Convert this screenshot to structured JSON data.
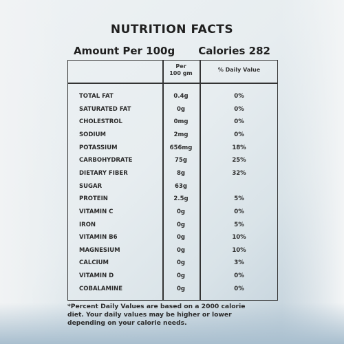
{
  "title": "NUTRITION FACTS",
  "amount_label": "Amount Per 100g",
  "calories_label": "Calories 282",
  "columns": {
    "per_line1": "Per",
    "per_line2": "100 gm",
    "daily_value": "% Daily Value"
  },
  "rows": [
    {
      "name": "TOTAL FAT",
      "amount": "0.4g",
      "dv": "0%"
    },
    {
      "name": "SATURATED FAT",
      "amount": "0g",
      "dv": "0%"
    },
    {
      "name": "CHOLESTROL",
      "amount": "0mg",
      "dv": "0%"
    },
    {
      "name": "SODIUM",
      "amount": "2mg",
      "dv": "0%"
    },
    {
      "name": "POTASSIUM",
      "amount": "656mg",
      "dv": "18%"
    },
    {
      "name": "CARBOHYDRATE",
      "amount": "75g",
      "dv": "25%"
    },
    {
      "name": "DIETARY FIBER",
      "amount": "8g",
      "dv": "32%"
    },
    {
      "name": "SUGAR",
      "amount": "63g",
      "dv": ""
    },
    {
      "name": "PROTEIN",
      "amount": "2.5g",
      "dv": "5%"
    },
    {
      "name": "VITAMIN C",
      "amount": "0g",
      "dv": "0%"
    },
    {
      "name": "IRON",
      "amount": "0g",
      "dv": "5%"
    },
    {
      "name": "VITAMIN B6",
      "amount": "0g",
      "dv": "10%"
    },
    {
      "name": "MAGNESIUM",
      "amount": "0g",
      "dv": "10%"
    },
    {
      "name": "CALCIUM",
      "amount": "0g",
      "dv": "3%"
    },
    {
      "name": "VITAMIN D",
      "amount": "0g",
      "dv": "0%"
    },
    {
      "name": "COBALAMINE",
      "amount": "0g",
      "dv": "0%"
    }
  ],
  "footnote": {
    "line1": "*Percent Daily Values are based on a 2000 calorie",
    "line2": "diet. Your daily values may be higher or lower",
    "line3": "depending on your calorie needs."
  }
}
